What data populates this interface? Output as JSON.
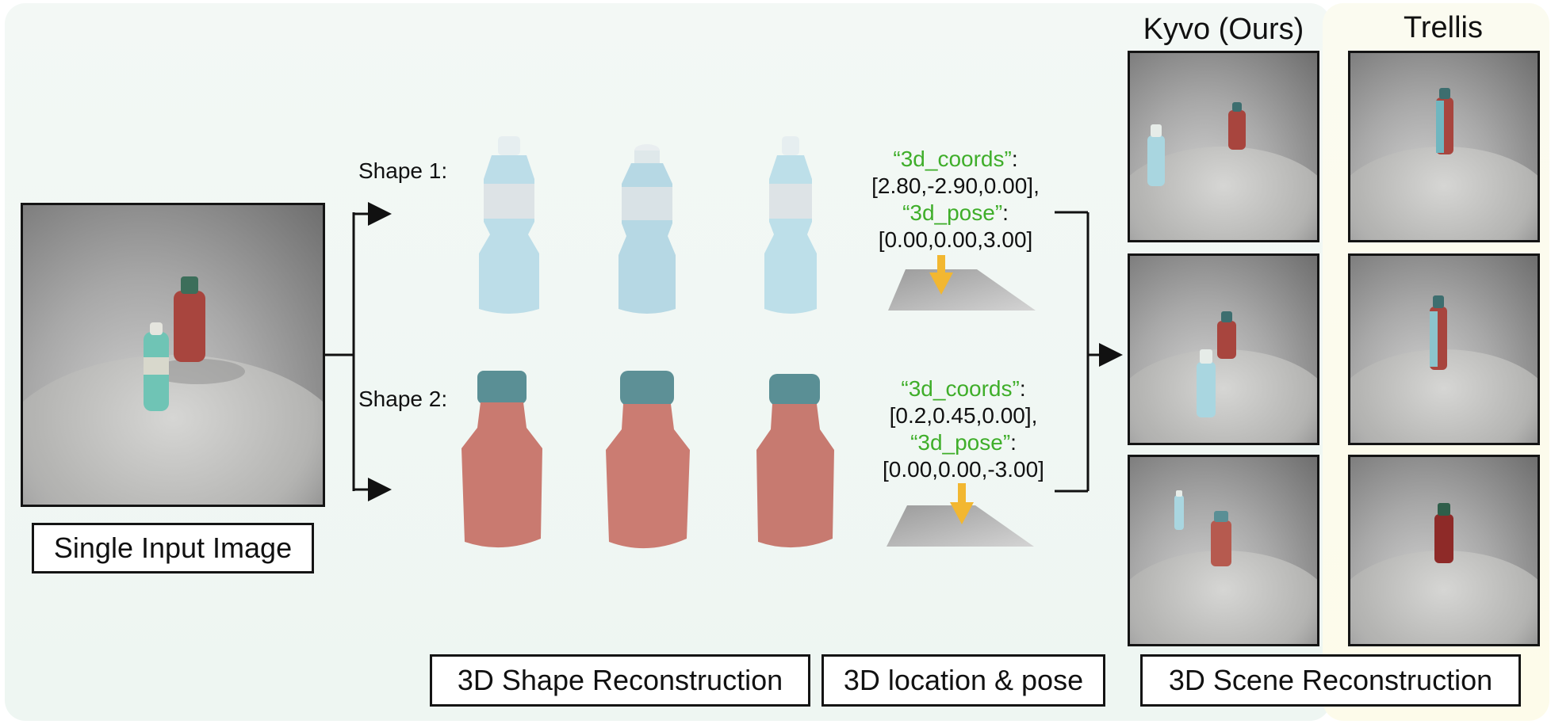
{
  "labels": {
    "input": "Single Input Image",
    "shape_recon": "3D Shape Reconstruction",
    "location_pose": "3D location & pose",
    "scene_recon": "3D Scene Reconstruction"
  },
  "columns": {
    "ours": "Kyvo (Ours)",
    "baseline": "Trellis"
  },
  "shapes": [
    {
      "label": "Shape 1:",
      "coords_key": "“3d_coords”",
      "coords_val": "[2.80,-2.90,0.00],",
      "pose_key": "“3d_pose”",
      "pose_val": "[0.00,0.00,3.00]"
    },
    {
      "label": "Shape 2:",
      "coords_key": "“3d_coords”",
      "coords_val": "[0.2,0.45,0.00],",
      "pose_key": "“3d_pose”",
      "pose_val": "[0.00,0.00,-3.00]"
    }
  ],
  "colors": {
    "key_green": "#3fae2a",
    "arrow_yellow": "#f2b731",
    "bottle_blue": "#bcdde8",
    "bottle_red": "#c97a70",
    "cap_teal": "#5a8f95"
  }
}
